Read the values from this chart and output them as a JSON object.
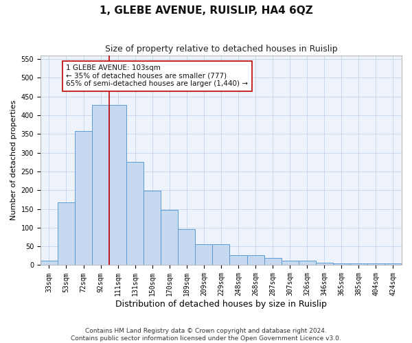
{
  "title": "1, GLEBE AVENUE, RUISLIP, HA4 6QZ",
  "subtitle": "Size of property relative to detached houses in Ruislip",
  "xlabel": "Distribution of detached houses by size in Ruislip",
  "ylabel": "Number of detached properties",
  "categories": [
    "33sqm",
    "53sqm",
    "72sqm",
    "92sqm",
    "111sqm",
    "131sqm",
    "150sqm",
    "170sqm",
    "189sqm",
    "209sqm",
    "229sqm",
    "248sqm",
    "268sqm",
    "287sqm",
    "307sqm",
    "326sqm",
    "346sqm",
    "365sqm",
    "385sqm",
    "404sqm",
    "424sqm"
  ],
  "values": [
    12,
    168,
    357,
    428,
    428,
    275,
    199,
    148,
    96,
    55,
    55,
    26,
    26,
    20,
    11,
    11,
    7,
    5,
    5,
    4,
    4
  ],
  "bar_color": "#c6d9f0",
  "bar_edge_color": "#5b9bd5",
  "vline_x": 3.5,
  "vline_color": "#c00000",
  "annotation_text": "1 GLEBE AVENUE: 103sqm\n← 35% of detached houses are smaller (777)\n65% of semi-detached houses are larger (1,440) →",
  "annotation_box_color": "#ffffff",
  "annotation_box_edge_color": "#c00000",
  "ylim": [
    0,
    560
  ],
  "yticks": [
    0,
    50,
    100,
    150,
    200,
    250,
    300,
    350,
    400,
    450,
    500,
    550
  ],
  "footer_line1": "Contains HM Land Registry data © Crown copyright and database right 2024.",
  "footer_line2": "Contains public sector information licensed under the Open Government Licence v3.0.",
  "title_fontsize": 11,
  "subtitle_fontsize": 9,
  "xlabel_fontsize": 9,
  "ylabel_fontsize": 8,
  "tick_fontsize": 7,
  "annotation_fontsize": 7.5,
  "footer_fontsize": 6.5,
  "grid_color": "#b8cfe8",
  "bg_color": "#eef3fb"
}
